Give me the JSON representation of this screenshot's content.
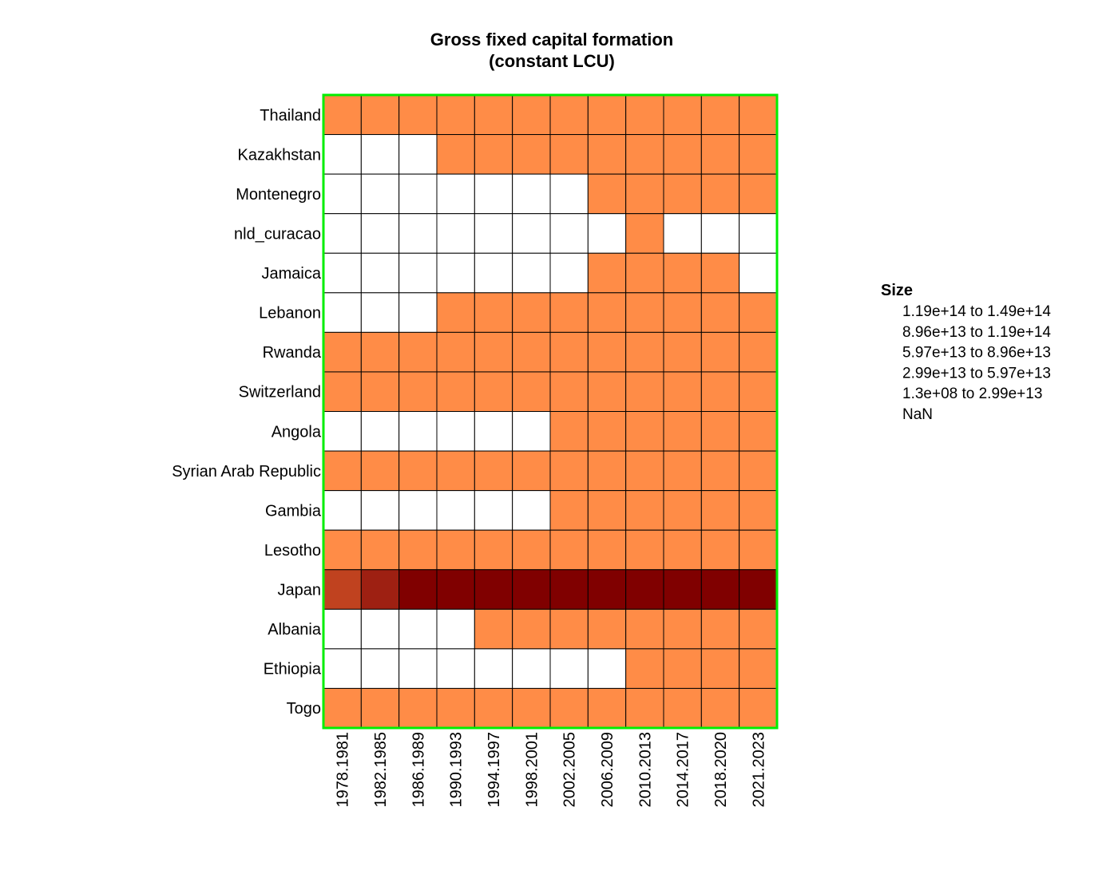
{
  "chart_data": {
    "type": "heatmap",
    "title": [
      "Gross fixed capital formation",
      "(constant LCU)"
    ],
    "rows": [
      "Thailand",
      "Kazakhstan",
      "Montenegro",
      "nld_curacao",
      "Jamaica",
      "Lebanon",
      "Rwanda",
      "Switzerland",
      "Angola",
      "Syrian Arab Republic",
      "Gambia",
      "Lesotho",
      "Japan",
      "Albania",
      "Ethiopia",
      "Togo"
    ],
    "columns": [
      "1978.1981",
      "1982.1985",
      "1986.1989",
      "1990.1993",
      "1994.1997",
      "1998.2001",
      "2002.2005",
      "2006.2009",
      "2010.2013",
      "2014.2017",
      "2018.2020",
      "2021.2023"
    ],
    "cells": [
      [
        1,
        1,
        1,
        1,
        1,
        1,
        1,
        1,
        1,
        1,
        1,
        1
      ],
      [
        0,
        0,
        0,
        1,
        1,
        1,
        1,
        1,
        1,
        1,
        1,
        1
      ],
      [
        0,
        0,
        0,
        0,
        0,
        0,
        0,
        1,
        1,
        1,
        1,
        1
      ],
      [
        0,
        0,
        0,
        0,
        0,
        0,
        0,
        0,
        1,
        0,
        0,
        0
      ],
      [
        0,
        0,
        0,
        0,
        0,
        0,
        0,
        1,
        1,
        1,
        1,
        0
      ],
      [
        0,
        0,
        0,
        1,
        1,
        1,
        1,
        1,
        1,
        1,
        1,
        1
      ],
      [
        1,
        1,
        1,
        1,
        1,
        1,
        1,
        1,
        1,
        1,
        1,
        1
      ],
      [
        1,
        1,
        1,
        1,
        1,
        1,
        1,
        1,
        1,
        1,
        1,
        1
      ],
      [
        0,
        0,
        0,
        0,
        0,
        0,
        1,
        1,
        1,
        1,
        1,
        1
      ],
      [
        1,
        1,
        1,
        1,
        1,
        1,
        1,
        1,
        1,
        1,
        1,
        1
      ],
      [
        0,
        0,
        0,
        0,
        0,
        0,
        1,
        1,
        1,
        1,
        1,
        1
      ],
      [
        1,
        1,
        1,
        1,
        1,
        1,
        1,
        1,
        1,
        1,
        1,
        1
      ],
      [
        3,
        4,
        5,
        5,
        5,
        5,
        5,
        5,
        5,
        5,
        5,
        5
      ],
      [
        0,
        0,
        0,
        0,
        1,
        1,
        1,
        1,
        1,
        1,
        1,
        1
      ],
      [
        0,
        0,
        0,
        0,
        0,
        0,
        0,
        0,
        1,
        1,
        1,
        1
      ],
      [
        1,
        1,
        1,
        1,
        1,
        1,
        1,
        1,
        1,
        1,
        1,
        1
      ]
    ],
    "bin_colors": [
      "#ffffff",
      "#ff8c47",
      "#f46b3c",
      "#c0421f",
      "#9e2012",
      "#800000"
    ],
    "legend": {
      "title": "Size",
      "position": "right",
      "items": [
        {
          "from": "1.19e+14",
          "to": "1.49e+14"
        },
        {
          "from": "8.96e+13",
          "to": "1.19e+14"
        },
        {
          "from": "5.97e+13",
          "to": "8.96e+13"
        },
        {
          "from": "2.99e+13",
          "to": "5.97e+13"
        },
        {
          "from": "1.3e+08",
          "to": "2.99e+13"
        },
        {
          "label": "NaN"
        }
      ],
      "connector": "to"
    },
    "frame_color": "#00ee00",
    "grid_color": "#000000"
  }
}
